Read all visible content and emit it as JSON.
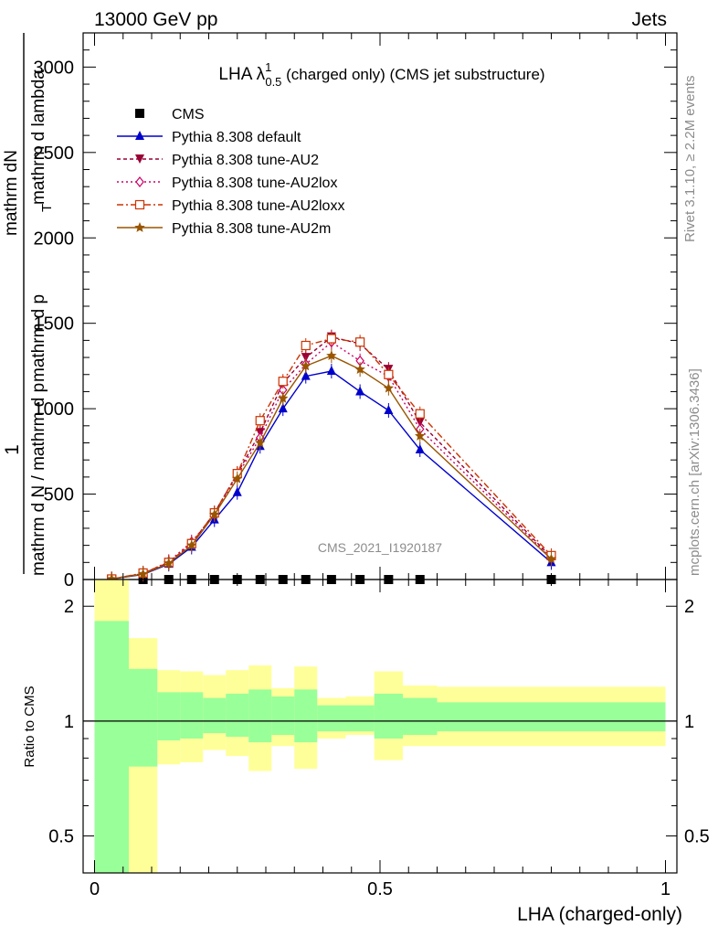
{
  "header": {
    "left": "13000 GeV pp",
    "right": "Jets"
  },
  "side_notes": {
    "rivet": "Rivet 3.1.10, ≥ 2.2M events",
    "mcplots": "mcplots.cern.ch [arXiv:1306.3436]"
  },
  "watermark": "CMS_2021_I1920187",
  "title": {
    "main": "LHA λ",
    "sup": "1",
    "sub": "0.5",
    "rest": " (charged only) (CMS jet substructure)"
  },
  "ylabel_main": {
    "one": "1",
    "frac1_num": "mathrm dN",
    "frac1_den": "mathrm d N / mathrm d p",
    "frac2_num": "mathrm d p",
    "frac2_den": "T",
    "full": "mathrm d N / mathrm d p_T mathrm d lambda"
  },
  "ylabel_main_parts": [
    "1",
    "mathrm d N / mathrm d p",
    "mathrm dN",
    "mathrm d p",
    "T",
    "mathrm d lambda"
  ],
  "ylabel_ratio": "Ratio to CMS",
  "xlabel": "LHA (charged-only)",
  "chart_data": [
    {
      "type": "line",
      "panel": "main",
      "xlim": [
        -0.02,
        1.02
      ],
      "ylim": [
        0,
        3200
      ],
      "yticks": [
        0,
        500,
        1000,
        1500,
        2000,
        2500,
        3000
      ],
      "ytick_labels": [
        "0",
        "500",
        "1000",
        "1500",
        "2000",
        "2500",
        "3000"
      ],
      "bins": [
        0.0,
        0.06,
        0.11,
        0.15,
        0.19,
        0.23,
        0.27,
        0.31,
        0.35,
        0.39,
        0.44,
        0.49,
        0.54,
        0.6,
        1.0
      ],
      "x": [
        0.03,
        0.085,
        0.13,
        0.17,
        0.21,
        0.25,
        0.29,
        0.33,
        0.37,
        0.415,
        0.465,
        0.515,
        0.57,
        0.8
      ],
      "series": [
        {
          "name": "CMS",
          "color": "#000000",
          "marker": "square",
          "dash": "none",
          "values": [
            0,
            0,
            0,
            0,
            0,
            0,
            0,
            0,
            0,
            0,
            0,
            0,
            0,
            0
          ]
        },
        {
          "name": "Pythia 8.308 default",
          "color": "#0000cc",
          "marker": "triangle-up",
          "dash": "solid",
          "values": [
            3,
            30,
            90,
            190,
            350,
            510,
            780,
            1000,
            1190,
            1220,
            1100,
            990,
            760,
            100
          ]
        },
        {
          "name": "Pythia 8.308 tune-AU2",
          "color": "#990033",
          "marker": "triangle-down",
          "dash": "4,3",
          "values": [
            3,
            35,
            100,
            210,
            390,
            620,
            860,
            1150,
            1300,
            1420,
            1380,
            1230,
            920,
            130
          ]
        },
        {
          "name": "Pythia 8.308 tune-AU2lox",
          "color": "#cc0066",
          "marker": "diamond",
          "dash": "2,3",
          "values": [
            3,
            35,
            105,
            220,
            380,
            610,
            830,
            1110,
            1260,
            1390,
            1280,
            1190,
            880,
            125
          ]
        },
        {
          "name": "Pythia 8.308 tune-AU2loxx",
          "color": "#cc3300",
          "marker": "open-square",
          "dash": "7,3,2,3",
          "values": [
            3,
            38,
            100,
            210,
            390,
            620,
            930,
            1160,
            1370,
            1410,
            1390,
            1200,
            970,
            140
          ]
        },
        {
          "name": "Pythia 8.308 tune-AU2m",
          "color": "#995500",
          "marker": "star",
          "dash": "solid",
          "values": [
            3,
            32,
            95,
            200,
            380,
            590,
            800,
            1060,
            1250,
            1310,
            1230,
            1120,
            840,
            120
          ]
        }
      ]
    },
    {
      "type": "area",
      "panel": "ratio",
      "xlim": [
        -0.02,
        1.02
      ],
      "ylim": [
        0.4,
        2.35
      ],
      "yticks": [
        0.5,
        1,
        2
      ],
      "ytick_labels": [
        "0.5",
        "1",
        "2"
      ],
      "xticks": [
        0,
        0.5,
        1
      ],
      "xtick_labels": [
        "0",
        "0.5",
        "1"
      ],
      "ratio_line": 1,
      "bands": [
        {
          "name": "stat",
          "color": "#99ff99",
          "upper": [
            1.83,
            1.37,
            1.19,
            1.19,
            1.15,
            1.18,
            1.21,
            1.16,
            1.21,
            1.1,
            1.1,
            1.18,
            1.15,
            1.12
          ],
          "lower": [
            0.1,
            0.76,
            0.89,
            0.9,
            0.93,
            0.91,
            0.88,
            0.92,
            0.88,
            0.94,
            0.94,
            0.9,
            0.92,
            0.94
          ]
        },
        {
          "name": "total",
          "color": "#ffff99",
          "upper": [
            2.4,
            1.65,
            1.36,
            1.35,
            1.32,
            1.36,
            1.4,
            1.22,
            1.39,
            1.15,
            1.16,
            1.35,
            1.24,
            1.23
          ],
          "lower": [
            0.05,
            0.39,
            0.77,
            0.78,
            0.84,
            0.81,
            0.74,
            0.86,
            0.75,
            0.9,
            0.92,
            0.79,
            0.86,
            0.86
          ]
        }
      ]
    }
  ]
}
